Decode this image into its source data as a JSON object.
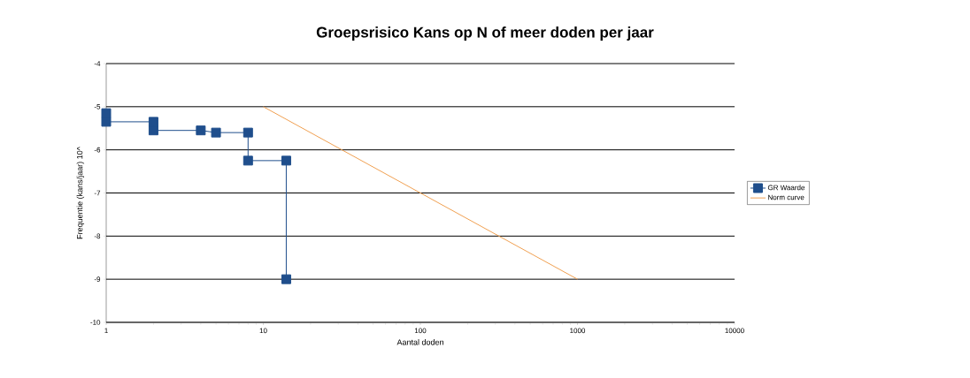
{
  "chart_data": {
    "type": "line",
    "title": "Groepsrisico Kans op N of meer doden per jaar",
    "xlabel": "Aantal doden",
    "ylabel": "Frequentie (kans/jaar) 10^",
    "log": "x",
    "xlim": [
      1,
      10000
    ],
    "xticks": [
      1,
      10,
      100,
      1000,
      10000
    ],
    "ylim": [
      -10,
      -4
    ],
    "yticks": [
      -10,
      -9,
      -8,
      -7,
      -6,
      -5,
      -4
    ],
    "grid": "y",
    "legend": "right",
    "series": [
      {
        "name": "GR Waarde",
        "color": "#1f4e8c",
        "marker": "square",
        "x": [
          1,
          1,
          2,
          2,
          4,
          5,
          8,
          8,
          14,
          14
        ],
        "values": [
          -5.15,
          -5.35,
          -5.35,
          -5.55,
          -5.55,
          -5.6,
          -5.6,
          -6.25,
          -6.25,
          -9
        ]
      },
      {
        "name": "Norm curve",
        "color": "#f0a050",
        "marker": "none",
        "x": [
          10,
          1000
        ],
        "values": [
          -5,
          -9
        ]
      }
    ]
  }
}
